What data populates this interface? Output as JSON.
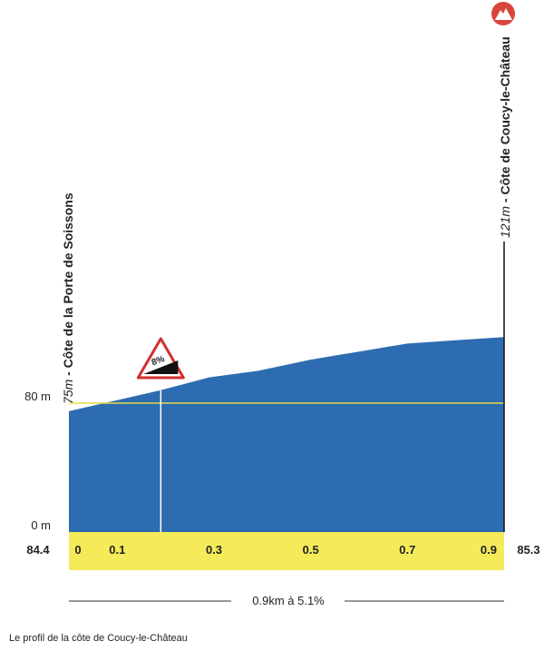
{
  "chart_data": {
    "type": "area",
    "x": [
      0,
      0.19,
      0.29,
      0.39,
      0.5,
      0.6,
      0.7,
      0.8,
      0.9
    ],
    "values": [
      75,
      88,
      96,
      100,
      107,
      112,
      117,
      119,
      121
    ],
    "color": "#2d6cb0",
    "xlim": [
      0,
      0.9
    ],
    "ylim": [
      0,
      200
    ],
    "xticks": [
      0,
      0.1,
      0.3,
      0.5,
      0.7,
      0.9
    ],
    "yticks": [
      {
        "value": 0,
        "label": "0 m"
      },
      {
        "value": 80,
        "label": "80 m"
      }
    ],
    "reference_line": {
      "value": 80,
      "color": "#e8d94a"
    },
    "start_km": "84.4",
    "end_km": "85.3",
    "start_point": {
      "altitude": "75m",
      "name": " - Côte de la Porte de Soissons"
    },
    "end_point": {
      "altitude": "121m",
      "name": " - Côte de Coucy-le-Château"
    },
    "gradient_marker": {
      "x": 0.19,
      "label": "8%"
    },
    "summary": "0.9km à 5.1%",
    "caption": "Le profil de la côte de Coucy-le-Château"
  }
}
